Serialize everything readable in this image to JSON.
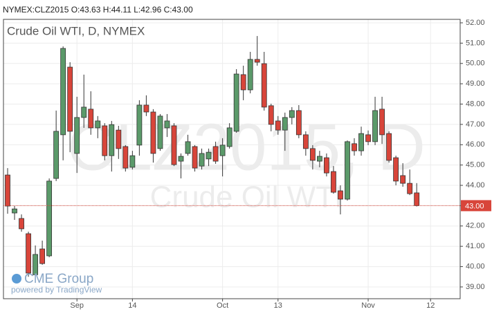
{
  "chart_data": {
    "type": "candlestick",
    "header": "NYMEX:CLZ2015 O:43.63 H:44.11 L:42.96 C:43.00",
    "title": "Crude Oil WTI, D, NYMEX",
    "watermark": "CLZ2015, D",
    "watermark_subtitle": "Crude Oil WTI",
    "logo": "CME Group",
    "logo_subtitle": "powered by TradingView",
    "up_color": "#5b9a6a",
    "down_color": "#d8453a",
    "grid": true,
    "categories": [
      null,
      null,
      null,
      null,
      null,
      null,
      null,
      null,
      null,
      null,
      "Sep",
      null,
      null,
      null,
      null,
      null,
      null,
      null,
      "14",
      null,
      null,
      null,
      null,
      null,
      null,
      null,
      null,
      null,
      null,
      null,
      null,
      "Oct",
      null,
      null,
      null,
      null,
      null,
      null,
      null,
      "13",
      null,
      null,
      null,
      null,
      null,
      null,
      null,
      null,
      null,
      null,
      null,
      null,
      "Nov",
      null,
      null,
      null,
      null,
      null,
      null,
      null,
      null,
      "12"
    ],
    "open": [
      44.51,
      42.64,
      42.37,
      41.62,
      39.6,
      40.87,
      40.53,
      44.34,
      46.49,
      49.82,
      45.57,
      47.34,
      47.75,
      46.83,
      46.93,
      45.46,
      46.72,
      45.91,
      44.89,
      45.98,
      47.95,
      47.61,
      45.81,
      46.83,
      46.93,
      45.19,
      45.57,
      45.91,
      44.95,
      45.3,
      45.91,
      45.46,
      45.91,
      46.66,
      49.45,
      48.7,
      50.2,
      49.99,
      47.92,
      47.17,
      46.72,
      47.34,
      47.68,
      46.49,
      45.81,
      45.19,
      45.36,
      44.68,
      43.73,
      43.32,
      46.05,
      45.7,
      46.49,
      46.15,
      47.75,
      46.55,
      45.36,
      44.48,
      44.1,
      43.63,
      null,
      null
    ],
    "high": [
      44.85,
      42.98,
      42.57,
      41.72,
      41.04,
      41.28,
      44.34,
      47.68,
      50.84,
      50.06,
      48.36,
      49.45,
      48.63,
      47.41,
      47.06,
      47.17,
      46.93,
      45.98,
      45.7,
      48.19,
      48.43,
      47.75,
      47.51,
      47.51,
      47.06,
      45.57,
      46.49,
      45.98,
      45.81,
      45.81,
      46.15,
      46.32,
      47.06,
      49.72,
      49.89,
      50.57,
      51.35,
      50.57,
      48.02,
      47.41,
      47.58,
      47.85,
      47.95,
      46.66,
      45.98,
      45.7,
      45.57,
      44.95,
      44.0,
      46.21,
      46.32,
      46.89,
      46.7,
      48.36,
      48.36,
      46.66,
      45.46,
      45.09,
      44.78,
      44.11,
      null,
      null
    ],
    "low": [
      42.6,
      42.3,
      41.72,
      39.5,
      39.5,
      40.09,
      40.46,
      44.21,
      45.23,
      45.63,
      44.61,
      46.83,
      46.49,
      46.32,
      45.23,
      44.68,
      45.3,
      44.68,
      44.78,
      45.46,
      47.41,
      45.12,
      45.7,
      46.38,
      44.95,
      44.34,
      45.46,
      44.68,
      44.78,
      44.95,
      45.06,
      44.44,
      45.81,
      46.59,
      48.19,
      48.53,
      49.89,
      47.68,
      46.66,
      46.49,
      45.7,
      47.0,
      46.32,
      45.46,
      44.78,
      44.89,
      44.44,
      43.59,
      42.57,
      43.25,
      45.46,
      45.46,
      45.98,
      45.98,
      46.04,
      45.12,
      44.0,
      43.93,
      43.52,
      42.96,
      null,
      null
    ],
    "close": [
      42.98,
      42.84,
      41.86,
      39.68,
      40.6,
      40.15,
      44.21,
      46.66,
      50.74,
      46.66,
      47.34,
      47.85,
      46.83,
      47.17,
      45.46,
      46.99,
      45.81,
      44.85,
      45.46,
      47.95,
      47.61,
      45.57,
      47.41,
      47.17,
      45.02,
      45.43,
      46.15,
      44.85,
      45.57,
      45.63,
      45.19,
      45.98,
      46.83,
      49.48,
      48.7,
      50.2,
      50.06,
      47.85,
      47.0,
      46.72,
      47.34,
      47.68,
      46.49,
      45.81,
      45.23,
      45.43,
      44.61,
      43.66,
      43.32,
      46.15,
      45.7,
      46.55,
      46.15,
      47.68,
      46.49,
      45.23,
      44.21,
      44.1,
      43.59,
      43.0,
      null,
      null
    ],
    "ylim": [
      38.42,
      52.17
    ],
    "yticks": [
      {
        "value": 39,
        "label": "39.00"
      },
      {
        "value": 40,
        "label": "40.00"
      },
      {
        "value": 41,
        "label": "41.00"
      },
      {
        "value": 42,
        "label": "42.00"
      },
      {
        "value": 43,
        "label": "43.00"
      },
      {
        "value": 44,
        "label": "44.00"
      },
      {
        "value": 45,
        "label": "45.00"
      },
      {
        "value": 46,
        "label": "46.00"
      },
      {
        "value": 47,
        "label": "47.00"
      },
      {
        "value": 48,
        "label": "48.00"
      },
      {
        "value": 49,
        "label": "49.00"
      },
      {
        "value": 50,
        "label": "50.00"
      },
      {
        "value": 51,
        "label": "51.00"
      },
      {
        "value": 52,
        "label": "52.00"
      }
    ],
    "last_price": {
      "value": 43,
      "label": "43.00"
    }
  }
}
